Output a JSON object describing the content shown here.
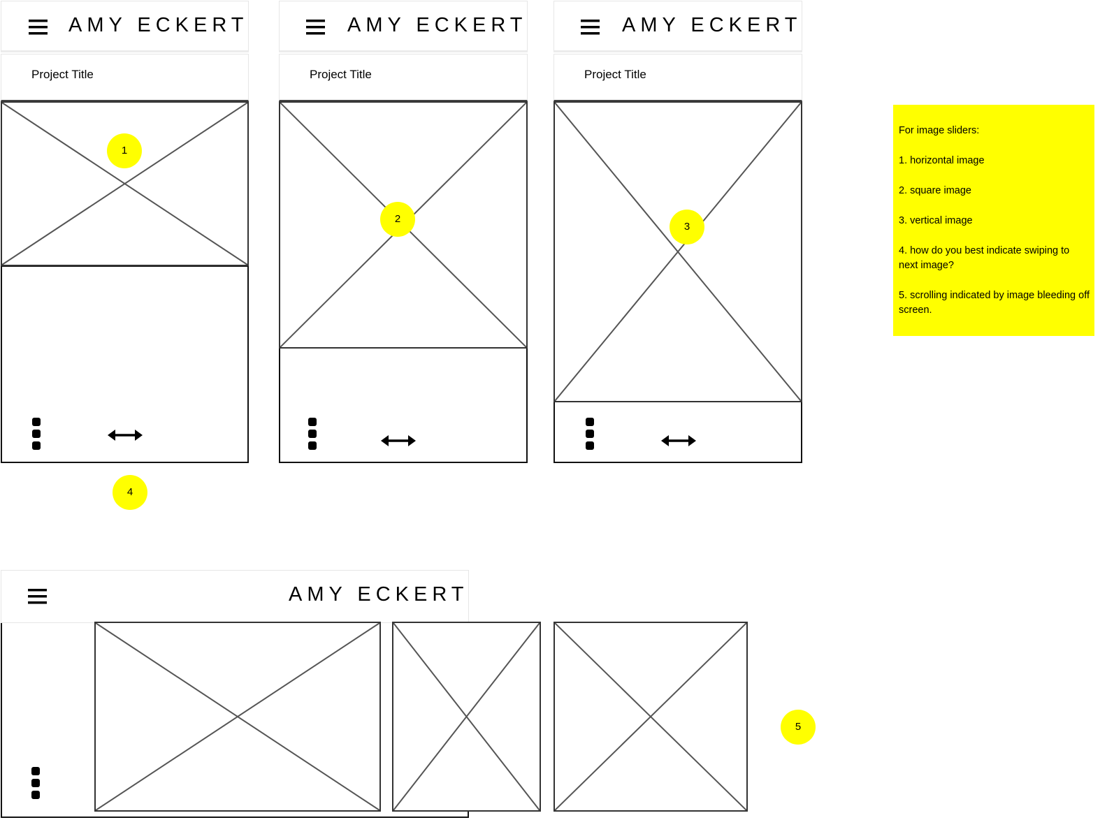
{
  "brand": "AMY ECKERT",
  "project_title": "Project Title",
  "icons": {
    "menu": "hamburger-menu-icon",
    "dots": "vertical-dots-icon",
    "swipe": "horizontal-double-arrow-icon",
    "image_placeholder": "image-placeholder-icon"
  },
  "markers": [
    "1",
    "2",
    "3",
    "4",
    "5"
  ],
  "note": {
    "heading": "For image sliders:",
    "items": [
      "1. horizontal image",
      "2. square image",
      "3. vertical image",
      "4. how do you best indicate swiping to next image?",
      "5. scrolling indicated by image bleeding off screen."
    ]
  },
  "colors": {
    "annotation": "#ffff00",
    "wire": "#555555"
  }
}
